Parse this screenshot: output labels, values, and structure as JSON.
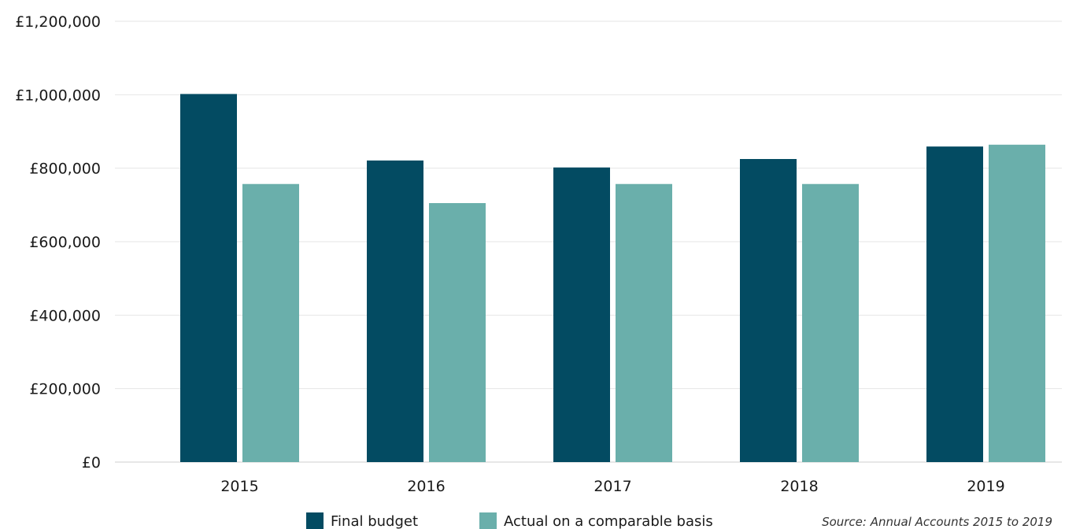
{
  "chart_data": {
    "type": "bar",
    "categories": [
      "2015",
      "2016",
      "2017",
      "2018",
      "2019"
    ],
    "series": [
      {
        "name": "Final budget",
        "color": "#034b62",
        "values": [
          1002000,
          821000,
          802000,
          825000,
          859000
        ]
      },
      {
        "name": "Actual on a comparable basis",
        "color": "#6aafab",
        "values": [
          757000,
          705000,
          757000,
          757000,
          864000
        ]
      }
    ],
    "y_ticks": [
      {
        "value": 0,
        "label": "£0"
      },
      {
        "value": 200000,
        "label": "£200,000"
      },
      {
        "value": 400000,
        "label": "£400,000"
      },
      {
        "value": 600000,
        "label": "£600,000"
      },
      {
        "value": 800000,
        "label": "£800,000"
      },
      {
        "value": 1000000,
        "label": "£1,000,000"
      },
      {
        "value": 1200000,
        "label": "£1,200,000"
      }
    ],
    "ylim": [
      0,
      1200000
    ],
    "grid": true,
    "legend_position": "bottom",
    "source_note": "Source: Annual Accounts 2015 to 2019"
  }
}
